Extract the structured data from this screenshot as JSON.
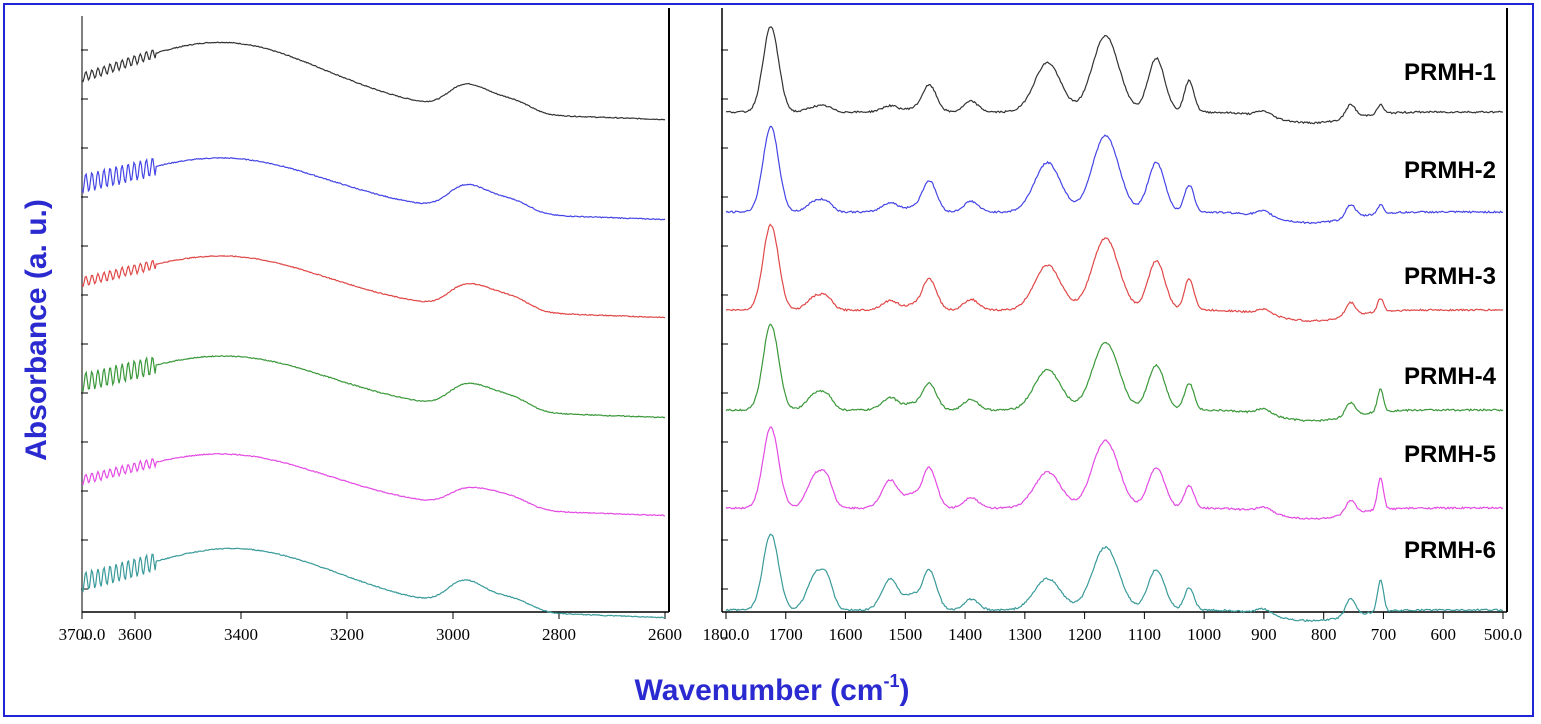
{
  "chart_data": {
    "type": "line",
    "ylabel": "Absorbance (a. u.)",
    "xlabel": "Wavenumber (cm",
    "xlabel_sup": "-1",
    "xlabel_close": ")",
    "colors": {
      "frame": "#1f25d6",
      "axis_title": "#2a2ad0",
      "series": [
        "#333333",
        "#4545e6",
        "#e04848",
        "#3a983a",
        "#e34be3",
        "#3a9a9a"
      ]
    },
    "panels": [
      {
        "name": "high-wavenumber",
        "xlim": [
          3700,
          2600
        ],
        "ticks": [
          {
            "value": 3700,
            "label": "3700.0"
          },
          {
            "value": 3600,
            "label": "3600"
          },
          {
            "value": 3400,
            "label": "3400"
          },
          {
            "value": 3200,
            "label": "3200"
          },
          {
            "value": 3000,
            "label": "3000"
          },
          {
            "value": 2800,
            "label": "2800"
          },
          {
            "value": 2600,
            "label": "2600"
          }
        ]
      },
      {
        "name": "fingerprint",
        "xlim": [
          1800,
          500
        ],
        "ticks": [
          {
            "value": 1800,
            "label": "1800.0"
          },
          {
            "value": 1700,
            "label": "1700"
          },
          {
            "value": 1600,
            "label": "1600"
          },
          {
            "value": 1500,
            "label": "1500"
          },
          {
            "value": 1400,
            "label": "1400"
          },
          {
            "value": 1300,
            "label": "1300"
          },
          {
            "value": 1200,
            "label": "1200"
          },
          {
            "value": 1100,
            "label": "1100"
          },
          {
            "value": 1000,
            "label": "1000"
          },
          {
            "value": 900,
            "label": "900"
          },
          {
            "value": 800,
            "label": "800"
          },
          {
            "value": 700,
            "label": "700"
          },
          {
            "value": 600,
            "label": "600"
          },
          {
            "value": 500,
            "label": "500.0"
          }
        ]
      }
    ],
    "series": [
      {
        "name": "PRMH-1"
      },
      {
        "name": "PRMH-2"
      },
      {
        "name": "PRMH-3"
      },
      {
        "name": "PRMH-4"
      },
      {
        "name": "PRMH-5"
      },
      {
        "name": "PRMH-6"
      }
    ],
    "oh_stretch_band": [
      {
        "peak_x": 3430,
        "height": 0.8
      },
      {
        "peak_x": 3425,
        "height": 0.6
      },
      {
        "peak_x": 3425,
        "height": 0.6
      },
      {
        "peak_x": 3420,
        "height": 0.6
      },
      {
        "peak_x": 3425,
        "height": 0.6
      },
      {
        "peak_x": 3405,
        "height": 0.7
      }
    ],
    "ch_stretch_peak": [
      {
        "x": 2955,
        "height": 0.5
      },
      {
        "x": 2955,
        "height": 0.5
      },
      {
        "x": 2950,
        "height": 0.5
      },
      {
        "x": 2950,
        "height": 0.5
      },
      {
        "x": 2945,
        "height": 0.4
      },
      {
        "x": 2960,
        "height": 0.5
      }
    ],
    "fingerprint_peaks": [
      {
        "carbonyl_1725": 0.95,
        "amide_1650": 0.1,
        "band_1520": 0.1,
        "band_1460": 0.3,
        "band_1265": 0.55,
        "band_1165": 0.85,
        "band_1080": 0.6,
        "band_1025": 0.35,
        "band_755": 0.15,
        "band_705": 0.1
      },
      {
        "carbonyl_1725": 0.95,
        "amide_1650": 0.2,
        "band_1520": 0.15,
        "band_1460": 0.35,
        "band_1265": 0.55,
        "band_1165": 0.85,
        "band_1080": 0.55,
        "band_1025": 0.3,
        "band_755": 0.15,
        "band_705": 0.1
      },
      {
        "carbonyl_1725": 0.95,
        "amide_1650": 0.25,
        "band_1520": 0.15,
        "band_1460": 0.35,
        "band_1265": 0.5,
        "band_1165": 0.8,
        "band_1080": 0.55,
        "band_1025": 0.35,
        "band_755": 0.15,
        "band_705": 0.15
      },
      {
        "carbonyl_1725": 0.95,
        "amide_1650": 0.3,
        "band_1520": 0.2,
        "band_1460": 0.3,
        "band_1265": 0.45,
        "band_1165": 0.75,
        "band_1080": 0.5,
        "band_1025": 0.3,
        "band_755": 0.15,
        "band_705": 0.25
      },
      {
        "carbonyl_1725": 0.9,
        "amide_1650": 0.6,
        "band_1520": 0.45,
        "band_1460": 0.45,
        "band_1265": 0.4,
        "band_1165": 0.75,
        "band_1080": 0.45,
        "band_1025": 0.25,
        "band_755": 0.15,
        "band_705": 0.35
      },
      {
        "carbonyl_1725": 0.85,
        "amide_1650": 0.65,
        "band_1520": 0.5,
        "band_1460": 0.45,
        "band_1265": 0.35,
        "band_1165": 0.7,
        "band_1080": 0.45,
        "band_1025": 0.25,
        "band_755": 0.2,
        "band_705": 0.35
      }
    ]
  }
}
